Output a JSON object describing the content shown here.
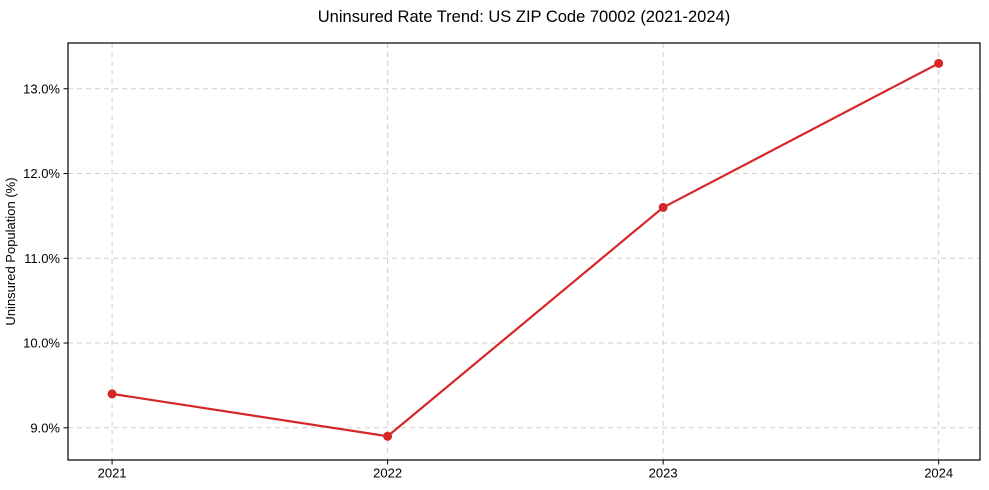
{
  "chart_data": {
    "type": "line",
    "title": "Uninsured Rate Trend: US ZIP Code 70002 (2021-2024)",
    "xlabel": "",
    "ylabel": "Uninsured Population (%)",
    "x": [
      2021,
      2022,
      2023,
      2024
    ],
    "x_tick_labels": [
      "2021",
      "2022",
      "2023",
      "2024"
    ],
    "series": [
      {
        "name": "Uninsured Population (%)",
        "values": [
          9.4,
          8.9,
          11.6,
          13.3
        ]
      }
    ],
    "y_ticks": [
      9.0,
      10.0,
      11.0,
      12.0,
      13.0
    ],
    "y_tick_labels": [
      "9.0%",
      "10.0%",
      "11.0%",
      "12.0%",
      "13.0%"
    ],
    "xlim": [
      2020.84,
      2024.15
    ],
    "ylim": [
      8.62,
      13.54
    ],
    "grid": true,
    "grid_style": "dashed",
    "legend": "none",
    "style": {
      "line_color": "#d62728",
      "marker": "circle",
      "marker_color": "#d62728",
      "grid_color": "#cfcfcf",
      "spine_color": "#000000",
      "tick_color": "#000000",
      "text_color": "#000000",
      "background": "#ffffff"
    }
  }
}
